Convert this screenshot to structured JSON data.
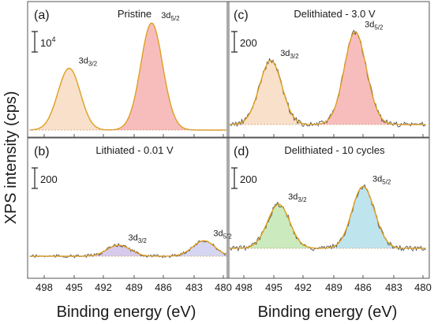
{
  "figure": {
    "ylabel": "XPS intensity (cps)",
    "xlabel": "Binding energy (eV)"
  },
  "chart_data": [
    {
      "type": "line",
      "panel_label": "(a)",
      "title": "Pristine",
      "x_ticks": [
        "498",
        "495",
        "492",
        "489",
        "486",
        "483",
        "480"
      ],
      "xlim": [
        500,
        479.5
      ],
      "scale_bar": {
        "label": "10",
        "exponent": "4"
      },
      "peaks": [
        {
          "label_main": "3d",
          "label_sub": "3/2",
          "x": 495.5,
          "height": 0.56,
          "fill": "#f5d5b8"
        },
        {
          "label_main": "3d",
          "label_sub": "5/2",
          "x": 487.2,
          "height": 0.97,
          "fill": "#f4a7a7"
        }
      ]
    },
    {
      "type": "line",
      "panel_label": "(b)",
      "title": "Lithiated - 0.01 V",
      "x_ticks": [
        "498",
        "495",
        "492",
        "489",
        "486",
        "483",
        "480"
      ],
      "xlim": [
        500,
        479.5
      ],
      "scale_bar": {
        "label": "200",
        "exponent": ""
      },
      "peaks": [
        {
          "label_main": "3d",
          "label_sub": "3/2",
          "x": 490.5,
          "height": 0.1,
          "fill": "#c9b8e6"
        },
        {
          "label_main": "3d",
          "label_sub": "5/2",
          "x": 482.0,
          "height": 0.14,
          "fill": "#c9c8ee"
        }
      ]
    },
    {
      "type": "line",
      "panel_label": "(c)",
      "title": "Delithiated - 3.0 V",
      "x_ticks": [
        "498",
        "495",
        "492",
        "489",
        "486",
        "483",
        "480"
      ],
      "xlim": [
        500,
        479.5
      ],
      "scale_bar": {
        "label": "200",
        "exponent": ""
      },
      "peaks": [
        {
          "label_main": "3d",
          "label_sub": "3/2",
          "x": 495.3,
          "height": 0.58,
          "fill": "#f5d5b8"
        },
        {
          "label_main": "3d",
          "label_sub": "5/2",
          "x": 486.8,
          "height": 0.84,
          "fill": "#f4a7a7"
        }
      ]
    },
    {
      "type": "line",
      "panel_label": "(d)",
      "title": "Delithiated - 10 cycles",
      "x_ticks": [
        "498",
        "495",
        "492",
        "489",
        "486",
        "483",
        "480"
      ],
      "xlim": [
        500,
        479.5
      ],
      "scale_bar": {
        "label": "200",
        "exponent": ""
      },
      "peaks": [
        {
          "label_main": "3d",
          "label_sub": "3/2",
          "x": 494.5,
          "height": 0.4,
          "fill": "#b9e3a8"
        },
        {
          "label_main": "3d",
          "label_sub": "5/2",
          "x": 486.0,
          "height": 0.56,
          "fill": "#a8dbe8"
        }
      ]
    }
  ]
}
